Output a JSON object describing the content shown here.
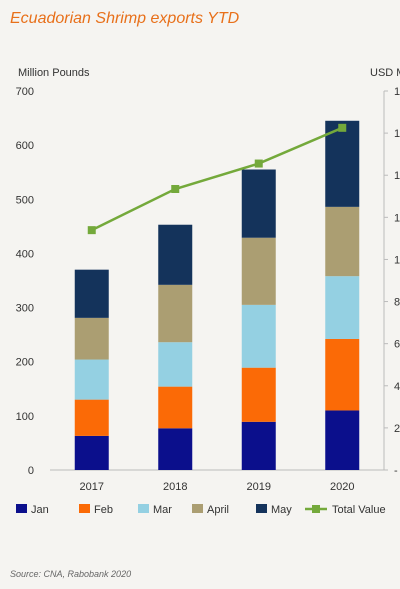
{
  "title": "Ecuadorian Shrimp exports YTD",
  "source": "Source: CNA,  Rabobank 2020",
  "chart_data": {
    "type": "bar",
    "stacked": true,
    "categories": [
      "2017",
      "2018",
      "2019",
      "2020"
    ],
    "ylabel_left": "Million Pounds",
    "ylabel_right": "USD M",
    "ylim_left": [
      0,
      700
    ],
    "yticks_left": [
      0,
      100,
      200,
      300,
      400,
      500,
      600,
      700
    ],
    "yticks_right": [
      "-",
      "2",
      "4",
      "6",
      "8",
      "1",
      "1",
      "1",
      "1",
      "1"
    ],
    "series": [
      {
        "name": "Jan",
        "color": "#0b0f8c",
        "values": [
          63,
          77,
          89,
          110
        ]
      },
      {
        "name": "Feb",
        "color": "#fb6a06",
        "values": [
          67,
          77,
          100,
          132
        ]
      },
      {
        "name": "Mar",
        "color": "#94d0e2",
        "values": [
          74,
          82,
          116,
          116
        ]
      },
      {
        "name": "April",
        "color": "#ab9e72",
        "values": [
          77,
          106,
          124,
          128
        ]
      },
      {
        "name": "May",
        "color": "#14335b",
        "values": [
          89,
          111,
          126,
          159
        ]
      }
    ],
    "line_series": {
      "name": "Total Value",
      "color": "#74a93b",
      "values": [
        443,
        519,
        566,
        632
      ],
      "axis": "left-equivalent"
    },
    "legend_position": "bottom",
    "grid": false
  }
}
